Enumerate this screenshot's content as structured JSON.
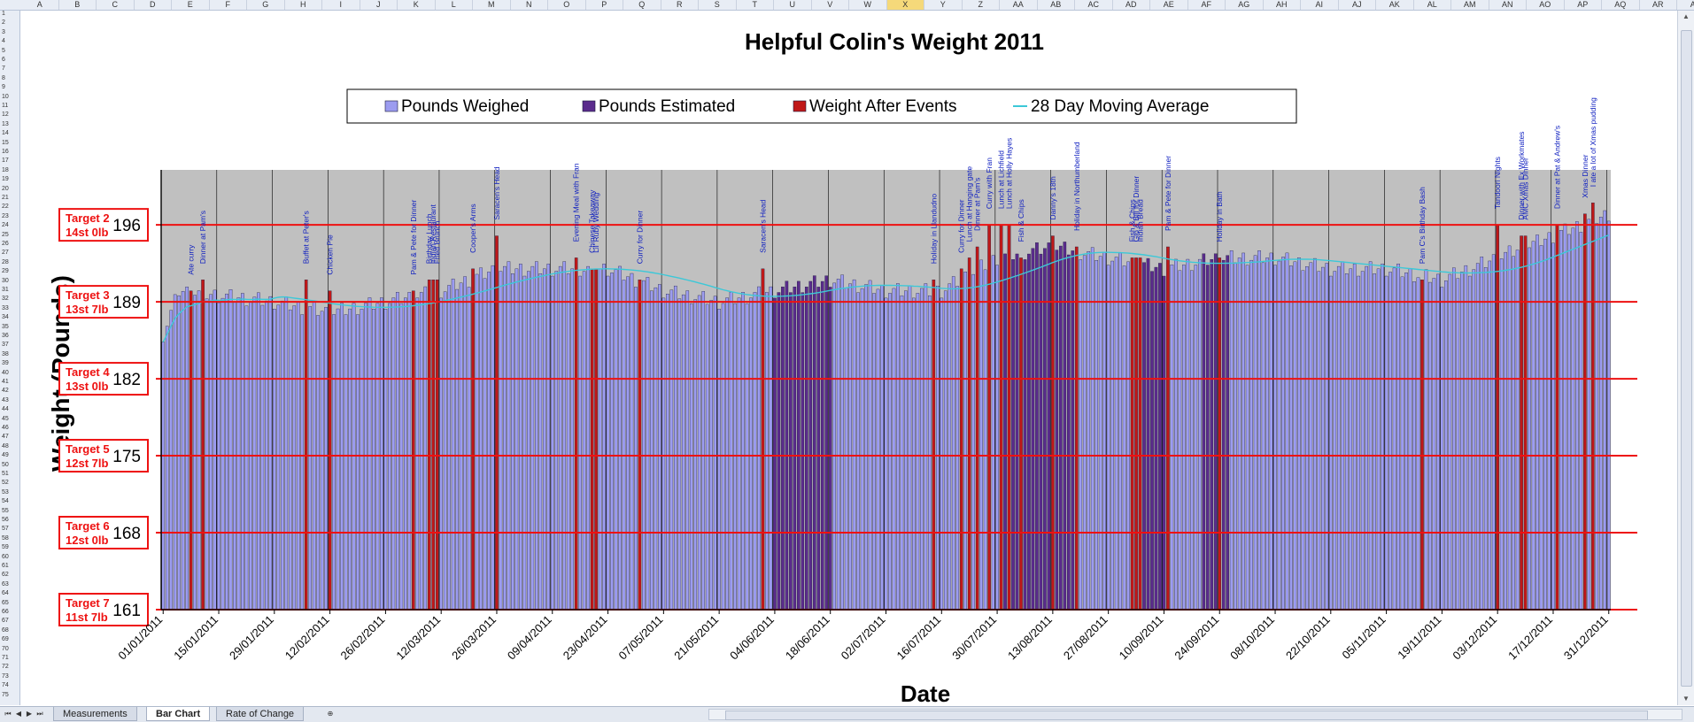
{
  "sheet": {
    "columns": [
      "A",
      "B",
      "C",
      "D",
      "E",
      "F",
      "G",
      "H",
      "I",
      "J",
      "K",
      "L",
      "M",
      "N",
      "O",
      "P",
      "Q",
      "R",
      "S",
      "T",
      "U",
      "V",
      "W",
      "X",
      "Y",
      "Z",
      "AA",
      "AB",
      "AC",
      "AD",
      "AE",
      "AF",
      "AG",
      "AH",
      "AI",
      "AJ",
      "AK",
      "AL",
      "AM",
      "AN",
      "AO",
      "AP",
      "AQ",
      "AR",
      "AS"
    ],
    "selected_column": "X",
    "rows_label_count": 75,
    "tabs": [
      "Measurements",
      "Bar Chart",
      "Rate of Change"
    ],
    "active_tab": "Bar Chart"
  },
  "chart_data": {
    "type": "bar",
    "title": "Helpful Colin's Weight 2011",
    "xlabel": "Date",
    "ylabel": "Weight (Pounds)",
    "ylim": [
      161,
      201
    ],
    "x_start": "01/01/2011",
    "x_end": "31/12/2011",
    "x_tick_labels": [
      "01/01/2011",
      "15/01/2011",
      "29/01/2011",
      "12/02/2011",
      "26/02/2011",
      "12/03/2011",
      "26/03/2011",
      "09/04/2011",
      "23/04/2011",
      "07/05/2011",
      "21/05/2011",
      "04/06/2011",
      "18/06/2011",
      "02/07/2011",
      "16/07/2011",
      "30/07/2011",
      "13/08/2011",
      "27/08/2011",
      "10/09/2011",
      "24/09/2011",
      "08/10/2011",
      "22/10/2011",
      "05/11/2011",
      "19/11/2011",
      "03/12/2011",
      "17/12/2011",
      "31/12/2011"
    ],
    "legend": [
      "Pounds Weighed",
      "Pounds Estimated",
      "Weight After Events",
      "28 Day Moving Average"
    ],
    "legend_position": "top",
    "colors": {
      "weighed": "#9c9cf0",
      "estimated": "#5a2b8c",
      "event": "#c01818",
      "moving_average": "#3cc8d8",
      "target_line": "#ee1111",
      "plot_bg": "#c0c0c0"
    },
    "targets": [
      {
        "label": "Target 2",
        "sublabel": "14st 0lb",
        "value": 196
      },
      {
        "label": "Target 3",
        "sublabel": "13st 7lb",
        "value": 189
      },
      {
        "label": "Target 4",
        "sublabel": "13st 0lb",
        "value": 182
      },
      {
        "label": "Target 5",
        "sublabel": "12st 7lb",
        "value": 175
      },
      {
        "label": "Target 6",
        "sublabel": "12st 0lb",
        "value": 168
      },
      {
        "label": "Target 7",
        "sublabel": "11st 7lb",
        "value": 161
      }
    ],
    "series_profile": {
      "description_points": [
        {
          "date": "01/01/2011",
          "value": 186
        },
        {
          "date": "05/01/2011",
          "value": 190
        },
        {
          "date": "29/01/2011",
          "value": 189
        },
        {
          "date": "12/02/2011",
          "value": 188
        },
        {
          "date": "26/02/2011",
          "value": 189
        },
        {
          "date": "12/03/2011",
          "value": 190
        },
        {
          "date": "26/03/2011",
          "value": 192
        },
        {
          "date": "09/04/2011",
          "value": 192
        },
        {
          "date": "23/04/2011",
          "value": 192
        },
        {
          "date": "07/05/2011",
          "value": 190
        },
        {
          "date": "21/05/2011",
          "value": 189
        },
        {
          "date": "04/06/2011",
          "value": 190
        },
        {
          "date": "18/06/2011",
          "value": 191
        },
        {
          "date": "02/07/2011",
          "value": 190
        },
        {
          "date": "16/07/2011",
          "value": 190
        },
        {
          "date": "30/07/2011",
          "value": 193
        },
        {
          "date": "13/08/2011",
          "value": 194
        },
        {
          "date": "27/08/2011",
          "value": 193
        },
        {
          "date": "10/09/2011",
          "value": 192
        },
        {
          "date": "24/09/2011",
          "value": 193
        },
        {
          "date": "08/10/2011",
          "value": 193
        },
        {
          "date": "22/10/2011",
          "value": 192
        },
        {
          "date": "05/11/2011",
          "value": 192
        },
        {
          "date": "19/11/2011",
          "value": 191
        },
        {
          "date": "03/12/2011",
          "value": 193
        },
        {
          "date": "17/12/2011",
          "value": 195
        },
        {
          "date": "31/12/2011",
          "value": 197
        }
      ],
      "estimated_periods": [
        {
          "from": "04/06/2011",
          "to": "18/06/2011"
        },
        {
          "from": "01/08/2011",
          "to": "18/08/2011"
        },
        {
          "from": "04/09/2011",
          "to": "10/09/2011"
        },
        {
          "from": "20/09/2011",
          "to": "26/09/2011"
        }
      ]
    },
    "events": [
      {
        "date": "08/01/2011",
        "value": 190,
        "label": "Ate curry"
      },
      {
        "date": "11/01/2011",
        "value": 191,
        "label": "Dinner at Pam's"
      },
      {
        "date": "06/02/2011",
        "value": 191,
        "label": "Buffet at Peter's"
      },
      {
        "date": "12/02/2011",
        "value": 190,
        "label": "Chicken Pie"
      },
      {
        "date": "05/03/2011",
        "value": 190,
        "label": "Pam & Pete for Dinner"
      },
      {
        "date": "09/03/2011",
        "value": 191,
        "label": "Birthday Lunch"
      },
      {
        "date": "10/03/2011",
        "value": 191,
        "label": "Indian Restaurant"
      },
      {
        "date": "11/03/2011",
        "value": 191,
        "label": "Fried Brunch"
      },
      {
        "date": "20/03/2011",
        "value": 192,
        "label": "Cooper's Arms"
      },
      {
        "date": "26/03/2011",
        "value": 195,
        "label": "Saracen's Head"
      },
      {
        "date": "15/04/2011",
        "value": 193,
        "label": "Evening Meal with Fran"
      },
      {
        "date": "19/04/2011",
        "value": 192,
        "label": "Chinese Takeaway"
      },
      {
        "date": "20/04/2011",
        "value": 192,
        "label": "Lil' Ruby Wedding"
      },
      {
        "date": "01/05/2011",
        "value": 191,
        "label": "Curry for Dinner"
      },
      {
        "date": "01/06/2011",
        "value": 192,
        "label": "Saracen's Head"
      },
      {
        "date": "14/07/2011",
        "value": 191,
        "label": "Holiday in Llandudno"
      },
      {
        "date": "21/07/2011",
        "value": 192,
        "label": "Curry for Dinner"
      },
      {
        "date": "23/07/2011",
        "value": 193,
        "label": "Lunch at Hanging gate"
      },
      {
        "date": "25/07/2011",
        "value": 194,
        "label": "Dinner at Pam's"
      },
      {
        "date": "28/07/2011",
        "value": 196,
        "label": "Curry with Fran"
      },
      {
        "date": "31/07/2011",
        "value": 196,
        "label": "Lunch at Lichfield"
      },
      {
        "date": "02/08/2011",
        "value": 196,
        "label": "Lunch at Holly Hayes"
      },
      {
        "date": "05/08/2011",
        "value": 193,
        "label": "Fish & Chips"
      },
      {
        "date": "13/08/2011",
        "value": 195,
        "label": "Danny's 18th"
      },
      {
        "date": "19/08/2011",
        "value": 194,
        "label": "Holiday in Northumberland"
      },
      {
        "date": "02/09/2011",
        "value": 193,
        "label": "Fish & Chips"
      },
      {
        "date": "03/09/2011",
        "value": 193,
        "label": "Glo & Bill for Dinner"
      },
      {
        "date": "04/09/2011",
        "value": 193,
        "label": "Indian Bread"
      },
      {
        "date": "11/09/2011",
        "value": 194,
        "label": "Pam & Pete for Dinner"
      },
      {
        "date": "24/09/2011",
        "value": 193,
        "label": "Holiday in Bath"
      },
      {
        "date": "14/11/2011",
        "value": 191,
        "label": "Pam C's Birthday Bash"
      },
      {
        "date": "03/12/2011",
        "value": 196,
        "label": "Tandoori Nights"
      },
      {
        "date": "09/12/2011",
        "value": 195,
        "label": "Dinner with Ex Workmates"
      },
      {
        "date": "10/12/2011",
        "value": 195,
        "label": "AMC Xmas Dinner"
      },
      {
        "date": "18/12/2011",
        "value": 196,
        "label": "Dinner at Pat & Andrew's"
      },
      {
        "date": "25/12/2011",
        "value": 197,
        "label": "Xmas Dinner"
      },
      {
        "date": "27/12/2011",
        "value": 198,
        "label": "I ate a lot of Xmas pudding"
      }
    ]
  }
}
